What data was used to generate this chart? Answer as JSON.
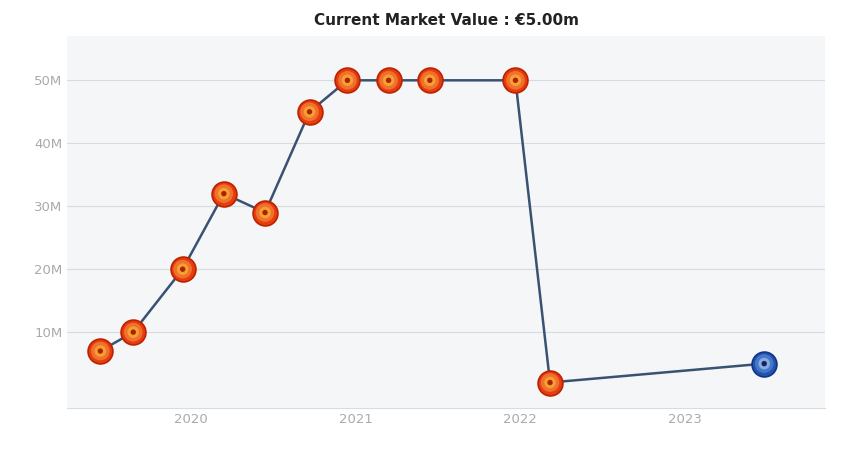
{
  "title": "Current Market Value : €5.00m",
  "title_fontsize": 11,
  "background_color": "#ffffff",
  "plot_bg_color": "#f4f6f8",
  "line_color": "#3a5272",
  "line_width": 1.8,
  "x_values": [
    2019.45,
    2019.65,
    2019.95,
    2020.2,
    2020.45,
    2020.72,
    2020.95,
    2021.2,
    2021.45,
    2021.97,
    2022.18,
    2023.48
  ],
  "y_values": [
    7,
    10,
    20,
    32,
    29,
    45,
    50,
    50,
    50,
    50,
    2,
    5
  ],
  "yticks": [
    10,
    20,
    30,
    40,
    50
  ],
  "ytick_labels": [
    "10M",
    "20M",
    "30M",
    "40M",
    "50M"
  ],
  "ylim": [
    -2,
    57
  ],
  "xlim": [
    2019.25,
    2023.85
  ],
  "xtick_positions": [
    2020,
    2021,
    2022,
    2023
  ],
  "xtick_labels": [
    "2020",
    "2021",
    "2022",
    "2023"
  ],
  "grid_color": "#d8dce0",
  "man_utd_points": [
    0,
    1,
    2,
    3,
    4,
    5,
    6,
    7,
    8,
    9,
    10
  ],
  "getafe_point": 11,
  "man_utd_outer": "#e63c0e",
  "man_utd_mid": "#f07030",
  "man_utd_inner": "#f5a030",
  "getafe_outer": "#2255aa",
  "getafe_mid": "#4477cc",
  "getafe_inner": "#88aadd"
}
